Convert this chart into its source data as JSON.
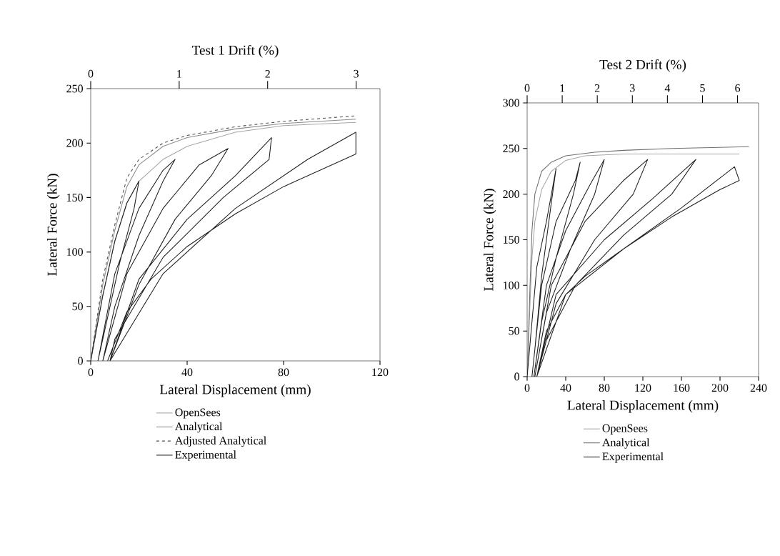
{
  "chart_data": [
    {
      "type": "line",
      "xlabel": "Lateral Displacement (mm)",
      "ylabel": "Lateral Force (kN)",
      "x2label": "Test 1 Drift (%)",
      "xlim": [
        0,
        120
      ],
      "xticks": [
        0,
        40,
        80,
        120
      ],
      "ylim": [
        0,
        250
      ],
      "yticks": [
        0,
        50,
        100,
        150,
        200,
        250
      ],
      "x2lim": [
        0,
        3.27
      ],
      "x2ticks": [
        0,
        1,
        2,
        3
      ],
      "legend": "bottom",
      "marker": "none",
      "grid": false,
      "series": [
        {
          "name": "OpenSees",
          "color": "#a6a6a6",
          "line_style": "solid",
          "x": [
            0,
            5,
            10,
            15,
            20,
            30,
            40,
            60,
            80,
            110
          ],
          "values": [
            0,
            60,
            110,
            145,
            165,
            185,
            197,
            210,
            216,
            219
          ]
        },
        {
          "name": "Analytical",
          "color": "#8c8c8c",
          "line_style": "solid",
          "x": [
            0,
            5,
            10,
            15,
            20,
            30,
            40,
            60,
            80,
            110
          ],
          "values": [
            0,
            70,
            120,
            160,
            180,
            197,
            205,
            213,
            218,
            222
          ]
        },
        {
          "name": "Adjusted Analytical",
          "color": "#505050",
          "line_style": "dashed",
          "x": [
            0,
            5,
            10,
            15,
            20,
            30,
            40,
            60,
            80,
            110
          ],
          "values": [
            0,
            75,
            125,
            168,
            185,
            200,
            207,
            215,
            220,
            225
          ]
        },
        {
          "name": "Experimental",
          "color": "#202020",
          "line_style": "solid",
          "x": [
            0,
            5,
            10,
            15,
            20,
            18,
            12,
            5,
            3,
            10,
            20,
            30,
            35,
            30,
            20,
            10,
            5,
            15,
            30,
            45,
            57,
            50,
            35,
            20,
            8,
            20,
            40,
            60,
            75,
            74,
            55,
            30,
            10,
            8,
            30,
            60,
            90,
            110,
            110,
            100,
            80,
            60,
            40,
            25,
            15,
            7
          ],
          "values": [
            0,
            60,
            110,
            145,
            165,
            140,
            90,
            20,
            0,
            80,
            140,
            175,
            185,
            165,
            115,
            50,
            0,
            80,
            140,
            180,
            195,
            170,
            130,
            70,
            0,
            75,
            130,
            170,
            205,
            185,
            150,
            95,
            20,
            0,
            80,
            140,
            185,
            210,
            190,
            180,
            160,
            135,
            105,
            75,
            45,
            0
          ]
        }
      ]
    },
    {
      "type": "line",
      "xlabel": "Lateral Displacement (mm)",
      "ylabel": "Lateral Force (kN)",
      "x2label": "Test 2 Drift (%)",
      "xlim": [
        0,
        240
      ],
      "xticks": [
        0,
        40,
        80,
        120,
        160,
        200,
        240
      ],
      "ylim": [
        0,
        300
      ],
      "yticks": [
        0,
        50,
        100,
        150,
        200,
        250,
        300
      ],
      "x2lim": [
        0,
        6.6
      ],
      "x2ticks": [
        0,
        1,
        2,
        3,
        4,
        5,
        6
      ],
      "legend": "bottom",
      "marker": "none",
      "grid": false,
      "series": [
        {
          "name": "OpenSees",
          "color": "#a6a6a6",
          "line_style": "solid",
          "x": [
            0,
            3,
            5,
            8,
            15,
            25,
            40,
            60,
            100,
            150,
            220
          ],
          "values": [
            0,
            80,
            130,
            170,
            205,
            225,
            237,
            242,
            244,
            244,
            244
          ]
        },
        {
          "name": "Analytical",
          "color": "#707070",
          "line_style": "solid",
          "x": [
            0,
            3,
            5,
            8,
            15,
            25,
            40,
            70,
            100,
            150,
            230
          ],
          "values": [
            0,
            100,
            160,
            200,
            225,
            235,
            242,
            246,
            248,
            250,
            252
          ]
        },
        {
          "name": "Experimental",
          "color": "#202020",
          "line_style": "solid",
          "x": [
            0,
            5,
            10,
            20,
            30,
            25,
            15,
            8,
            5,
            15,
            30,
            50,
            55,
            48,
            30,
            15,
            7,
            20,
            40,
            65,
            80,
            70,
            45,
            20,
            8,
            25,
            60,
            100,
            125,
            110,
            70,
            30,
            10,
            30,
            80,
            130,
            175,
            150,
            100,
            50,
            20,
            10,
            40,
            100,
            160,
            215,
            220,
            200,
            150,
            100,
            60,
            40,
            20,
            10
          ],
          "values": [
            0,
            60,
            120,
            170,
            228,
            190,
            110,
            30,
            0,
            100,
            170,
            215,
            235,
            200,
            130,
            60,
            0,
            100,
            160,
            210,
            238,
            200,
            140,
            70,
            0,
            100,
            170,
            215,
            238,
            200,
            150,
            80,
            0,
            90,
            150,
            195,
            238,
            200,
            155,
            100,
            40,
            0,
            90,
            140,
            185,
            230,
            215,
            205,
            175,
            140,
            110,
            90,
            50,
            0
          ]
        }
      ]
    }
  ]
}
